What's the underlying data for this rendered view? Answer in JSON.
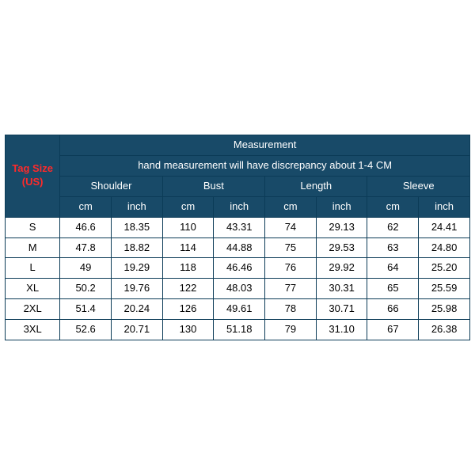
{
  "table": {
    "type": "table",
    "background_color": "#ffffff",
    "border_color": "#0b3b57",
    "header_bg": "#184a68",
    "header_text_color": "#ffffff",
    "tag_label_color": "#ff2a2a",
    "body_text_color": "#000000",
    "title_fontsize_pt": 13,
    "subnote_fontsize_pt": 9,
    "group_fontsize_pt": 11,
    "unit_fontsize_pt": 10,
    "body_fontsize_pt": 10,
    "tag_label_line1": "Tag Size",
    "tag_label_line2": "(US)",
    "measurement_title": "Measurement",
    "subnote": "hand measurement will have discrepancy about 1-4 CM",
    "groups": [
      "Shoulder",
      "Bust",
      "Length",
      "Sleeve"
    ],
    "units": [
      "cm",
      "inch",
      "cm",
      "inch",
      "cm",
      "inch",
      "cm",
      "inch"
    ],
    "sizes": [
      "S",
      "M",
      "L",
      "XL",
      "2XL",
      "3XL"
    ],
    "rows": [
      [
        "46.6",
        "18.35",
        "110",
        "43.31",
        "74",
        "29.13",
        "62",
        "24.41"
      ],
      [
        "47.8",
        "18.82",
        "114",
        "44.88",
        "75",
        "29.53",
        "63",
        "24.80"
      ],
      [
        "49",
        "19.29",
        "118",
        "46.46",
        "76",
        "29.92",
        "64",
        "25.20"
      ],
      [
        "50.2",
        "19.76",
        "122",
        "48.03",
        "77",
        "30.31",
        "65",
        "25.59"
      ],
      [
        "51.4",
        "20.24",
        "126",
        "49.61",
        "78",
        "30.71",
        "66",
        "25.98"
      ],
      [
        "52.6",
        "20.71",
        "130",
        "51.18",
        "79",
        "31.10",
        "67",
        "26.38"
      ]
    ],
    "column_widths_pct": [
      11.8,
      11.025,
      11.025,
      11.025,
      11.025,
      11.025,
      11.025,
      11.025,
      11.025
    ]
  }
}
